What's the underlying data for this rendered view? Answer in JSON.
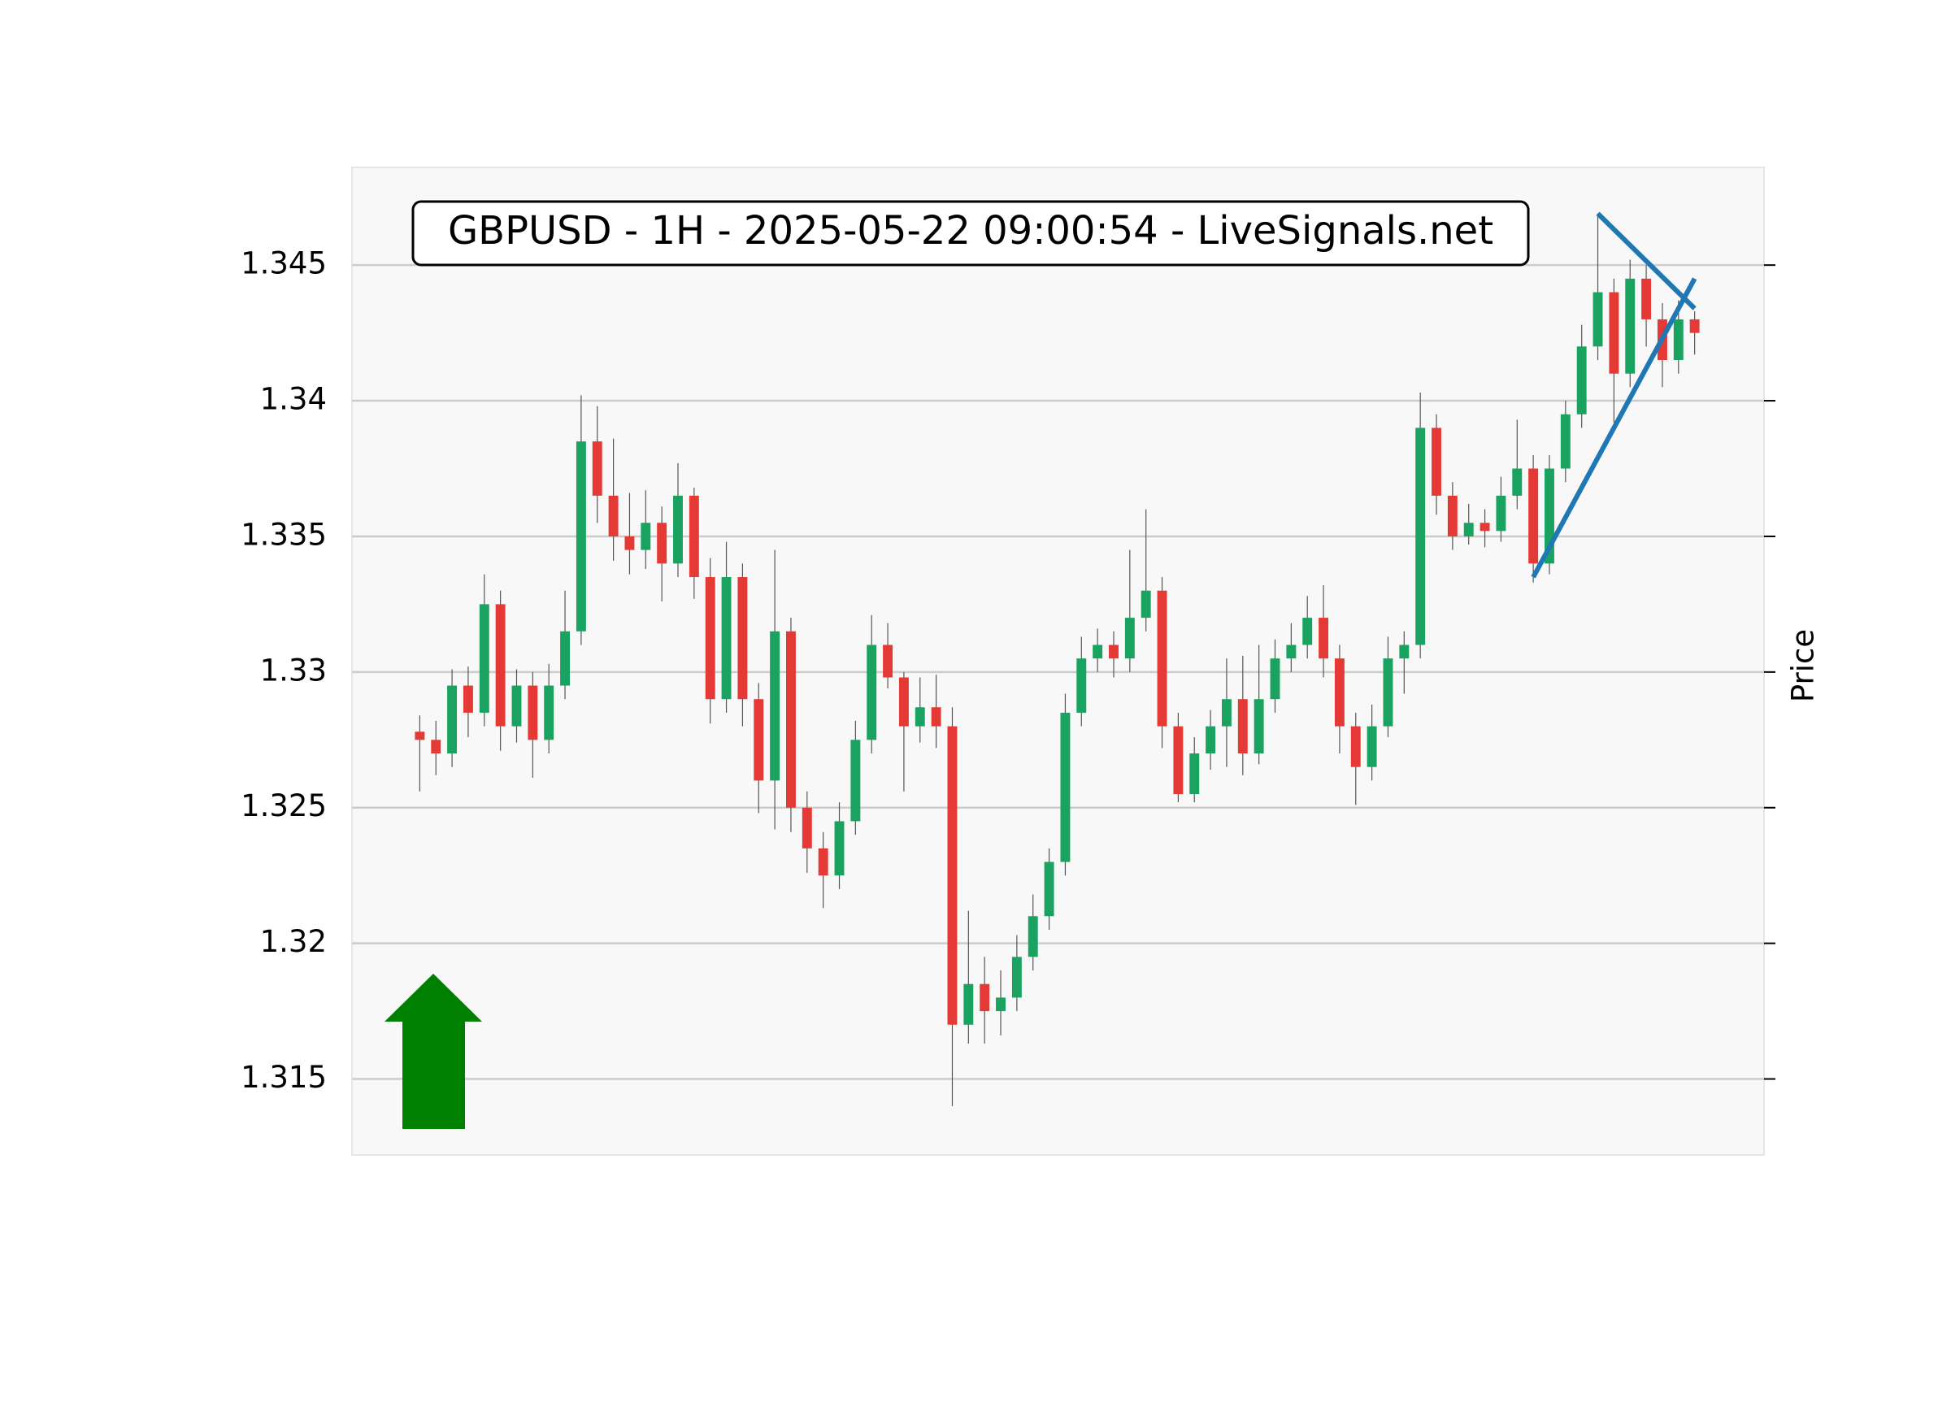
{
  "chart_data": {
    "type": "candlestick",
    "title": "GBPUSD - 1H - 2025-05-22 09:00:54 - LiveSignals.net",
    "y_label": "Price",
    "open": [
      1.3278,
      1.3275,
      1.327,
      1.3295,
      1.3285,
      1.3325,
      1.328,
      1.3295,
      1.3275,
      1.3295,
      1.3315,
      1.3385,
      1.3365,
      1.335,
      1.3345,
      1.3355,
      1.334,
      1.3365,
      1.3335,
      1.329,
      1.3335,
      1.329,
      1.326,
      1.3315,
      1.325,
      1.3235,
      1.3225,
      1.3245,
      1.3275,
      1.331,
      1.3298,
      1.328,
      1.3287,
      1.328,
      1.317,
      1.3185,
      1.3175,
      1.318,
      1.3195,
      1.321,
      1.323,
      1.3285,
      1.3305,
      1.331,
      1.3305,
      1.332,
      1.333,
      1.328,
      1.3255,
      1.327,
      1.328,
      1.329,
      1.327,
      1.329,
      1.3305,
      1.331,
      1.332,
      1.3305,
      1.328,
      1.3265,
      1.328,
      1.3305,
      1.331,
      1.339,
      1.3365,
      1.335,
      1.3355,
      1.3352,
      1.3365,
      1.3375,
      1.334,
      1.3375,
      1.3395,
      1.342,
      1.344,
      1.341,
      1.3445,
      1.343,
      1.3415,
      1.343
    ],
    "high": [
      1.3284,
      1.3282,
      1.3301,
      1.3302,
      1.3336,
      1.333,
      1.3301,
      1.33,
      1.3303,
      1.333,
      1.3402,
      1.3398,
      1.3386,
      1.3366,
      1.3367,
      1.3361,
      1.3377,
      1.3368,
      1.3342,
      1.3348,
      1.334,
      1.3296,
      1.3345,
      1.332,
      1.3256,
      1.3241,
      1.3252,
      1.3282,
      1.3321,
      1.3318,
      1.33,
      1.3298,
      1.3299,
      1.3287,
      1.3212,
      1.3195,
      1.319,
      1.3203,
      1.3218,
      1.3235,
      1.3292,
      1.3313,
      1.3316,
      1.3315,
      1.3345,
      1.336,
      1.3335,
      1.3285,
      1.3276,
      1.3286,
      1.3305,
      1.3306,
      1.331,
      1.3312,
      1.3318,
      1.3328,
      1.3332,
      1.331,
      1.3285,
      1.3288,
      1.3313,
      1.3315,
      1.3403,
      1.3395,
      1.337,
      1.3362,
      1.336,
      1.3372,
      1.3393,
      1.338,
      1.338,
      1.34,
      1.3428,
      1.3469,
      1.3445,
      1.3452,
      1.345,
      1.3436,
      1.3437,
      1.3433
    ],
    "low": [
      1.3256,
      1.3262,
      1.3265,
      1.3276,
      1.328,
      1.3271,
      1.3274,
      1.3261,
      1.327,
      1.329,
      1.331,
      1.3355,
      1.3341,
      1.3336,
      1.3338,
      1.3326,
      1.3335,
      1.3327,
      1.3281,
      1.3285,
      1.328,
      1.3248,
      1.3242,
      1.3241,
      1.3226,
      1.3213,
      1.322,
      1.324,
      1.327,
      1.3294,
      1.3256,
      1.3274,
      1.3272,
      1.314,
      1.3163,
      1.3163,
      1.3166,
      1.3175,
      1.319,
      1.3205,
      1.3225,
      1.328,
      1.33,
      1.3298,
      1.33,
      1.3315,
      1.3272,
      1.3252,
      1.3252,
      1.3264,
      1.3265,
      1.3262,
      1.3266,
      1.3285,
      1.33,
      1.3305,
      1.3298,
      1.327,
      1.3251,
      1.326,
      1.3276,
      1.3292,
      1.3305,
      1.3358,
      1.3345,
      1.3347,
      1.3346,
      1.3348,
      1.336,
      1.3333,
      1.3336,
      1.337,
      1.339,
      1.3415,
      1.3392,
      1.3405,
      1.342,
      1.3405,
      1.341,
      1.3417
    ],
    "close": [
      1.3275,
      1.327,
      1.3295,
      1.3285,
      1.3325,
      1.328,
      1.3295,
      1.3275,
      1.3295,
      1.3315,
      1.3385,
      1.3365,
      1.335,
      1.3345,
      1.3355,
      1.334,
      1.3365,
      1.3335,
      1.329,
      1.3335,
      1.329,
      1.326,
      1.3315,
      1.325,
      1.3235,
      1.3225,
      1.3245,
      1.3275,
      1.331,
      1.3298,
      1.328,
      1.3287,
      1.328,
      1.317,
      1.3185,
      1.3175,
      1.318,
      1.3195,
      1.321,
      1.323,
      1.3285,
      1.3305,
      1.331,
      1.3305,
      1.332,
      1.333,
      1.328,
      1.3255,
      1.327,
      1.328,
      1.329,
      1.327,
      1.329,
      1.3305,
      1.331,
      1.332,
      1.3305,
      1.328,
      1.3265,
      1.328,
      1.3305,
      1.331,
      1.339,
      1.3365,
      1.335,
      1.3355,
      1.3352,
      1.3365,
      1.3375,
      1.334,
      1.3375,
      1.3395,
      1.342,
      1.344,
      1.341,
      1.3445,
      1.343,
      1.3415,
      1.343,
      1.3425
    ],
    "up_color": "#1aa260",
    "down_color": "#e53935",
    "trendlines": [
      {
        "x": [
          69,
          79
        ],
        "y": [
          1.3335,
          1.3445
        ],
        "color": "#1f77b4"
      },
      {
        "x": [
          73,
          79
        ],
        "y": [
          1.3469,
          1.3434
        ],
        "color": "#1f77b4"
      }
    ],
    "xlim": [
      -4.2,
      83.3
    ],
    "ylim": [
      1.3122,
      1.3486
    ],
    "yticks": [
      1.315,
      1.32,
      1.325,
      1.33,
      1.335,
      1.34,
      1.345
    ],
    "grid": true
  }
}
